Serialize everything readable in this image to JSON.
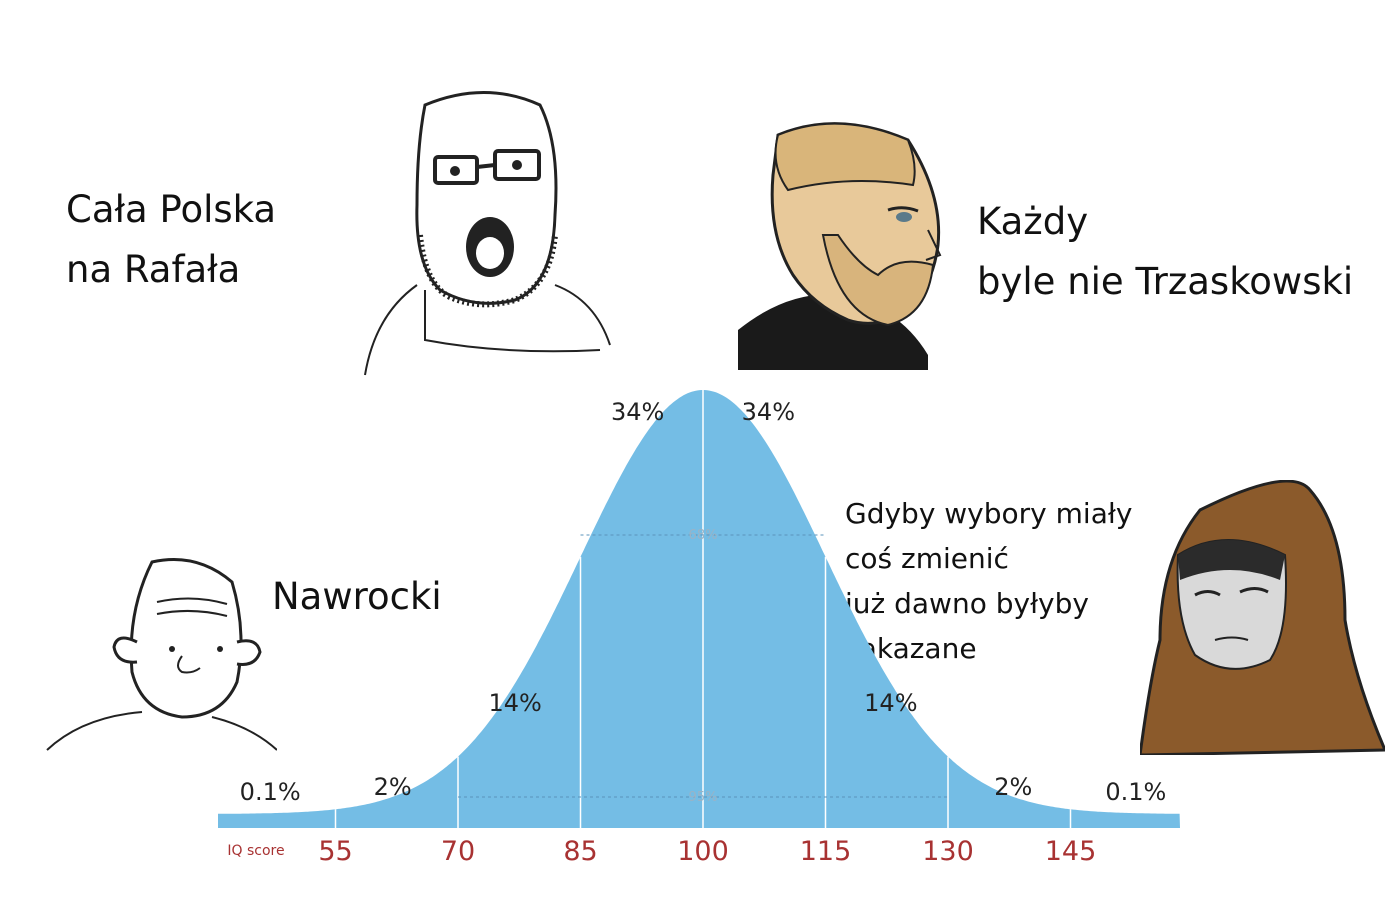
{
  "captions": {
    "top_left": [
      "Cała Polska",
      "na Rafała"
    ],
    "top_right": [
      "Każdy",
      "byle nie Trzaskowski"
    ],
    "left": "Nawrocki",
    "right": [
      "Gdyby wybory miały",
      "coś zmienić",
      "już dawno byłyby",
      "zakazane"
    ]
  },
  "chart_data": {
    "type": "area",
    "distribution": "normal",
    "mean": 100,
    "sd": 15,
    "xlabel": "IQ score",
    "xticks": [
      55,
      70,
      85,
      100,
      115,
      130,
      145
    ],
    "xlim": [
      40,
      160
    ],
    "band_labels": [
      {
        "text": "0.1%",
        "at": 47
      },
      {
        "text": "2%",
        "at": 62
      },
      {
        "text": "14%",
        "at": 77
      },
      {
        "text": "34%",
        "at": 92
      },
      {
        "text": "34%",
        "at": 108
      },
      {
        "text": "14%",
        "at": 123
      },
      {
        "text": "2%",
        "at": 138
      },
      {
        "text": "0.1%",
        "at": 153
      }
    ],
    "inner_labels": [
      {
        "text": "68%",
        "from": 85,
        "to": 115
      },
      {
        "text": "95%",
        "from": 70,
        "to": 130
      }
    ],
    "colors": {
      "fill": "#74bde5",
      "divider": "#ffffff",
      "tick": "#a83232"
    }
  },
  "faces": [
    "soyjak-glasses-icon",
    "chad-beard-icon",
    "wojak-simple-icon",
    "hooded-doomer-icon"
  ]
}
